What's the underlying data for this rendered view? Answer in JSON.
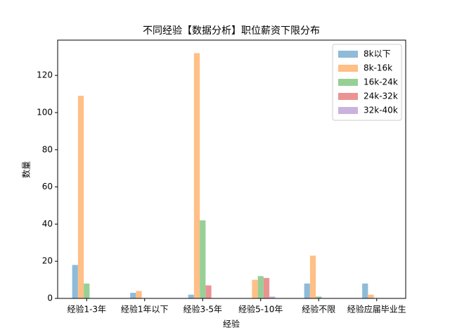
{
  "chart_data": {
    "type": "bar",
    "title": "不同经验【数据分析】职位薪资下限分布",
    "x_label": "经验",
    "y_label": "数量",
    "categories": [
      "经验1-3年",
      "经验1年以下",
      "经验3-5年",
      "经验5-10年",
      "经验不限",
      "经验应届毕业生"
    ],
    "series": [
      {
        "name": "8k以下",
        "color": "#8fbbd9",
        "values": [
          18,
          3,
          2,
          0,
          8,
          8
        ]
      },
      {
        "name": "8k-16k",
        "color": "#ffbf86",
        "values": [
          109,
          4,
          132,
          10,
          23,
          2
        ]
      },
      {
        "name": "16k-24k",
        "color": "#96d096",
        "values": [
          8,
          0,
          42,
          12,
          1,
          0
        ]
      },
      {
        "name": "24k-32k",
        "color": "#eb9393",
        "values": [
          0,
          0,
          7,
          11,
          0,
          0
        ]
      },
      {
        "name": "32k-40k",
        "color": "#c9b3de",
        "values": [
          0,
          0,
          0,
          1,
          0,
          0
        ]
      }
    ],
    "ylim": [
      0,
      139
    ],
    "yticks": [
      0,
      20,
      40,
      60,
      80,
      100,
      120
    ],
    "legend": "upper right"
  }
}
